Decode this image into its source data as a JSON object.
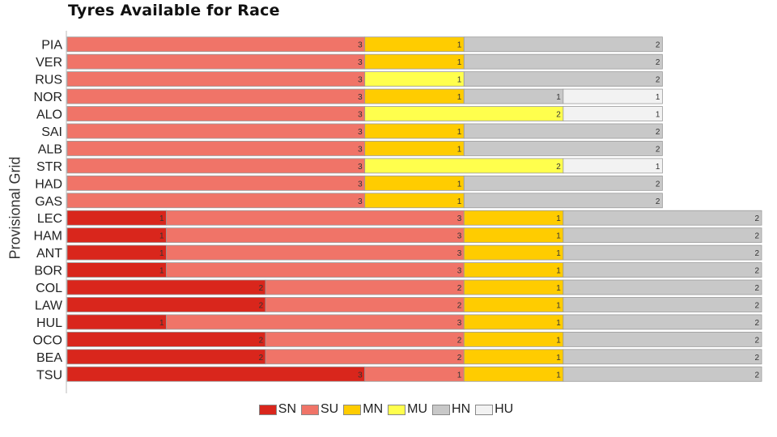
{
  "chart_data": {
    "type": "bar",
    "orientation": "horizontal",
    "stacked": true,
    "title": "Tyres Available for Race",
    "ylabel": "Provisional Grid",
    "xlabel": "",
    "xlim": [
      0,
      7
    ],
    "grid": false,
    "legend_position": "bottom",
    "categories": [
      "PIA",
      "VER",
      "RUS",
      "NOR",
      "ALO",
      "SAI",
      "ALB",
      "STR",
      "HAD",
      "GAS",
      "LEC",
      "HAM",
      "ANT",
      "BOR",
      "COL",
      "LAW",
      "HUL",
      "OCO",
      "BEA",
      "TSU"
    ],
    "series": [
      {
        "name": "SN",
        "color": "#d9261c",
        "values": [
          0,
          0,
          0,
          0,
          0,
          0,
          0,
          0,
          0,
          0,
          1,
          1,
          1,
          1,
          2,
          2,
          1,
          2,
          2,
          3
        ]
      },
      {
        "name": "SU",
        "color": "#f07468",
        "values": [
          3,
          3,
          3,
          3,
          3,
          3,
          3,
          3,
          3,
          3,
          3,
          3,
          3,
          3,
          2,
          2,
          3,
          2,
          2,
          1
        ]
      },
      {
        "name": "MN",
        "color": "#ffcc00",
        "values": [
          1,
          1,
          0,
          1,
          0,
          1,
          1,
          0,
          1,
          1,
          1,
          1,
          1,
          1,
          1,
          1,
          1,
          1,
          1,
          1
        ]
      },
      {
        "name": "MU",
        "color": "#ffff4d",
        "values": [
          0,
          0,
          1,
          0,
          2,
          0,
          0,
          2,
          0,
          0,
          0,
          0,
          0,
          0,
          0,
          0,
          0,
          0,
          0,
          0
        ]
      },
      {
        "name": "HN",
        "color": "#c8c8c8",
        "values": [
          2,
          2,
          2,
          1,
          0,
          2,
          2,
          0,
          2,
          2,
          2,
          2,
          2,
          2,
          2,
          2,
          2,
          2,
          2,
          2
        ]
      },
      {
        "name": "HU",
        "color": "#f2f2f2",
        "values": [
          0,
          0,
          0,
          1,
          1,
          0,
          0,
          1,
          0,
          0,
          0,
          0,
          0,
          0,
          0,
          0,
          0,
          0,
          0,
          0
        ]
      }
    ]
  }
}
